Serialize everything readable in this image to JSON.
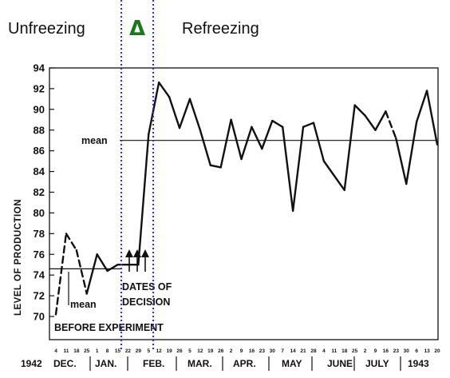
{
  "chart_data": {
    "type": "line",
    "ylabel": "LEVEL OF PRODUCTION",
    "yticks": [
      70,
      72,
      74,
      76,
      78,
      80,
      82,
      84,
      86,
      88,
      90,
      92,
      94
    ],
    "ylim": [
      69,
      94
    ],
    "phases": {
      "left": "Unfreezing",
      "middle": "Δ",
      "right": "Refreezing"
    },
    "annotations": {
      "mean_upper": "mean",
      "mean_lower": "mean",
      "decision_line1": "DATES OF",
      "decision_line2": "DECISION",
      "before": "BEFORE EXPERIMENT"
    },
    "date_ticks": [
      "4",
      "11",
      "18",
      "25",
      "1",
      "8",
      "15",
      "22",
      "29",
      "5",
      "12",
      "19",
      "26",
      "5",
      "12",
      "19",
      "26",
      "2",
      "9",
      "16",
      "23",
      "30",
      "7",
      "14",
      "21",
      "28",
      "4",
      "11",
      "18",
      "25",
      "2",
      "9",
      "16",
      "23",
      "30",
      "6",
      "13",
      "20"
    ],
    "months": [
      "DEC.",
      "JAN.",
      "FEB.",
      "MAR.",
      "APR.",
      "MAY",
      "JUNE",
      "JULY"
    ],
    "year_start": "1942",
    "year_end": "1943",
    "means": {
      "before": 74.6,
      "after": 87
    },
    "series": [
      {
        "values": [
          {
            "i": 0,
            "y": 70.2,
            "dash": true
          },
          {
            "i": 1,
            "y": 78,
            "dash": true
          },
          {
            "i": 2,
            "y": 76.4,
            "dash": true
          },
          {
            "i": 3,
            "y": 72.2,
            "dash": true
          },
          {
            "i": 4,
            "y": 76,
            "dash": false
          },
          {
            "i": 5,
            "y": 74.4,
            "dash": false
          },
          {
            "i": 6,
            "y": 75,
            "dash": false
          },
          {
            "i": 7,
            "y": 75,
            "dash": false
          },
          {
            "i": 8,
            "y": 75,
            "dash": false
          },
          {
            "i": 9,
            "y": 87.6,
            "dash": false
          },
          {
            "i": 10,
            "y": 92.6,
            "dash": false
          },
          {
            "i": 11,
            "y": 91.2,
            "dash": false
          },
          {
            "i": 12,
            "y": 88.2,
            "dash": false
          },
          {
            "i": 13,
            "y": 91,
            "dash": false
          },
          {
            "i": 14,
            "y": 88,
            "dash": false
          },
          {
            "i": 15,
            "y": 84.6,
            "dash": false
          },
          {
            "i": 16,
            "y": 84.4,
            "dash": false
          },
          {
            "i": 17,
            "y": 89,
            "dash": false
          },
          {
            "i": 18,
            "y": 85.2,
            "dash": false
          },
          {
            "i": 19,
            "y": 88.3,
            "dash": false
          },
          {
            "i": 20,
            "y": 86.2,
            "dash": false
          },
          {
            "i": 21,
            "y": 88.9,
            "dash": false
          },
          {
            "i": 22,
            "y": 88.3,
            "dash": false
          },
          {
            "i": 23,
            "y": 80.2,
            "dash": false
          },
          {
            "i": 24,
            "y": 88.3,
            "dash": false
          },
          {
            "i": 25,
            "y": 88.7,
            "dash": false
          },
          {
            "i": 26,
            "y": 85,
            "dash": false
          },
          {
            "i": 28,
            "y": 82.2,
            "dash": false
          },
          {
            "i": 29,
            "y": 90.4,
            "dash": false
          },
          {
            "i": 30,
            "y": 89.4,
            "dash": false
          },
          {
            "i": 31,
            "y": 88,
            "dash": false
          },
          {
            "i": 32,
            "y": 89.8,
            "dash": true
          },
          {
            "i": 33,
            "y": 87.2,
            "dash": true
          },
          {
            "i": 34,
            "y": 82.8,
            "dash": false
          },
          {
            "i": 35,
            "y": 88.8,
            "dash": false
          },
          {
            "i": 36,
            "y": 91.8,
            "dash": false
          },
          {
            "i": 37,
            "y": 86.6,
            "dash": false
          }
        ]
      }
    ]
  }
}
